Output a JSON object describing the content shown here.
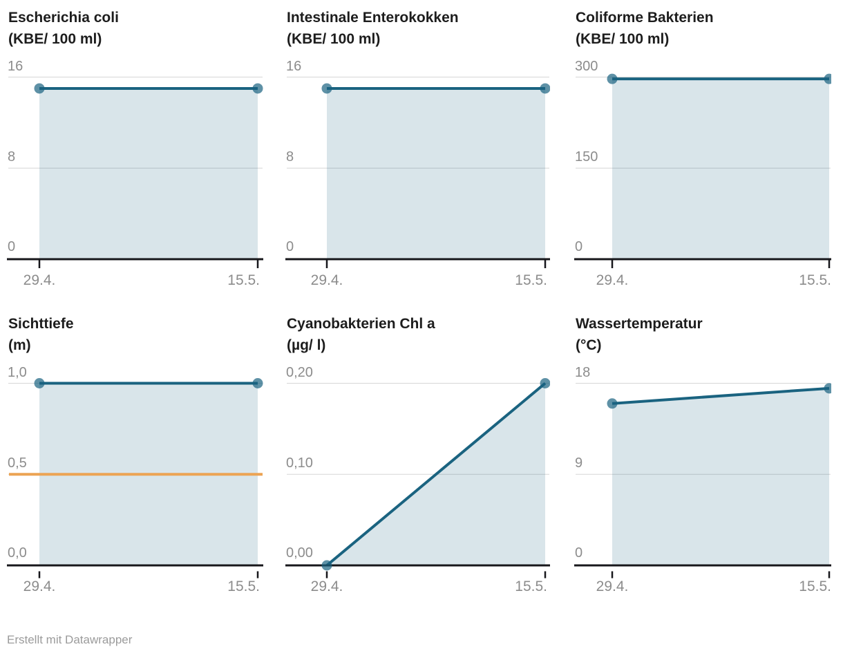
{
  "footer": {
    "credit": "Erstellt mit Datawrapper"
  },
  "x_axis": {
    "labels": [
      "29.4.",
      "15.5."
    ]
  },
  "colors": {
    "line": "#1a6380",
    "point": "rgba(26,99,128,0.7)",
    "area": "rgba(21,96,124,0.16)",
    "grid": "#d6d6d6",
    "axis": "#17171b",
    "threshold": "#eca454",
    "label": "#8c8c8c",
    "title": "#1d1d1d",
    "credit": "#9b9b9b"
  },
  "chart_data": [
    {
      "type": "area",
      "title": "Escherichia coli",
      "unit": "(KBE/ 100 ml)",
      "x": [
        "29.4.",
        "15.5."
      ],
      "values": [
        15,
        15
      ],
      "ylim": [
        0,
        16
      ],
      "yticks": [
        0,
        8,
        16
      ],
      "ytick_labels": [
        "0",
        "8",
        "16"
      ],
      "grid": true,
      "legend": "none"
    },
    {
      "type": "area",
      "title": "Intestinale Enterokokken",
      "unit": "(KBE/ 100 ml)",
      "x": [
        "29.4.",
        "15.5."
      ],
      "values": [
        15,
        15
      ],
      "ylim": [
        0,
        16
      ],
      "yticks": [
        0,
        8,
        16
      ],
      "ytick_labels": [
        "0",
        "8",
        "16"
      ],
      "grid": true,
      "legend": "none"
    },
    {
      "type": "area",
      "title": "Coliforme Bakterien",
      "unit": "(KBE/ 100 ml)",
      "x": [
        "29.4.",
        "15.5."
      ],
      "values": [
        297,
        297
      ],
      "ylim": [
        0,
        300
      ],
      "yticks": [
        0,
        150,
        300
      ],
      "ytick_labels": [
        "0",
        "150",
        "300"
      ],
      "grid": true,
      "legend": "none"
    },
    {
      "type": "area",
      "title": "Sichttiefe",
      "unit": "(m)",
      "x": [
        "29.4.",
        "15.5."
      ],
      "values": [
        1.0,
        1.0
      ],
      "ylim": [
        0,
        1.0
      ],
      "yticks": [
        0,
        0.5,
        1.0
      ],
      "ytick_labels": [
        "0,0",
        "0,5",
        "1,0"
      ],
      "threshold": {
        "value": 0.5,
        "color": "#eca454"
      },
      "grid": true,
      "legend": "none"
    },
    {
      "type": "area",
      "title": "Cyanobakterien Chl a",
      "unit": "(µg/ l)",
      "x": [
        "29.4.",
        "15.5."
      ],
      "values": [
        0.0,
        0.2
      ],
      "ylim": [
        0,
        0.2
      ],
      "yticks": [
        0,
        0.1,
        0.2
      ],
      "ytick_labels": [
        "0,00",
        "0,10",
        "0,20"
      ],
      "grid": true,
      "legend": "none"
    },
    {
      "type": "area",
      "title": "Wassertemperatur",
      "unit": "(°C)",
      "x": [
        "29.4.",
        "15.5."
      ],
      "values": [
        16,
        17.5
      ],
      "ylim": [
        0,
        18
      ],
      "yticks": [
        0,
        9,
        18
      ],
      "ytick_labels": [
        "0",
        "9",
        "18"
      ],
      "grid": true,
      "legend": "none"
    }
  ]
}
